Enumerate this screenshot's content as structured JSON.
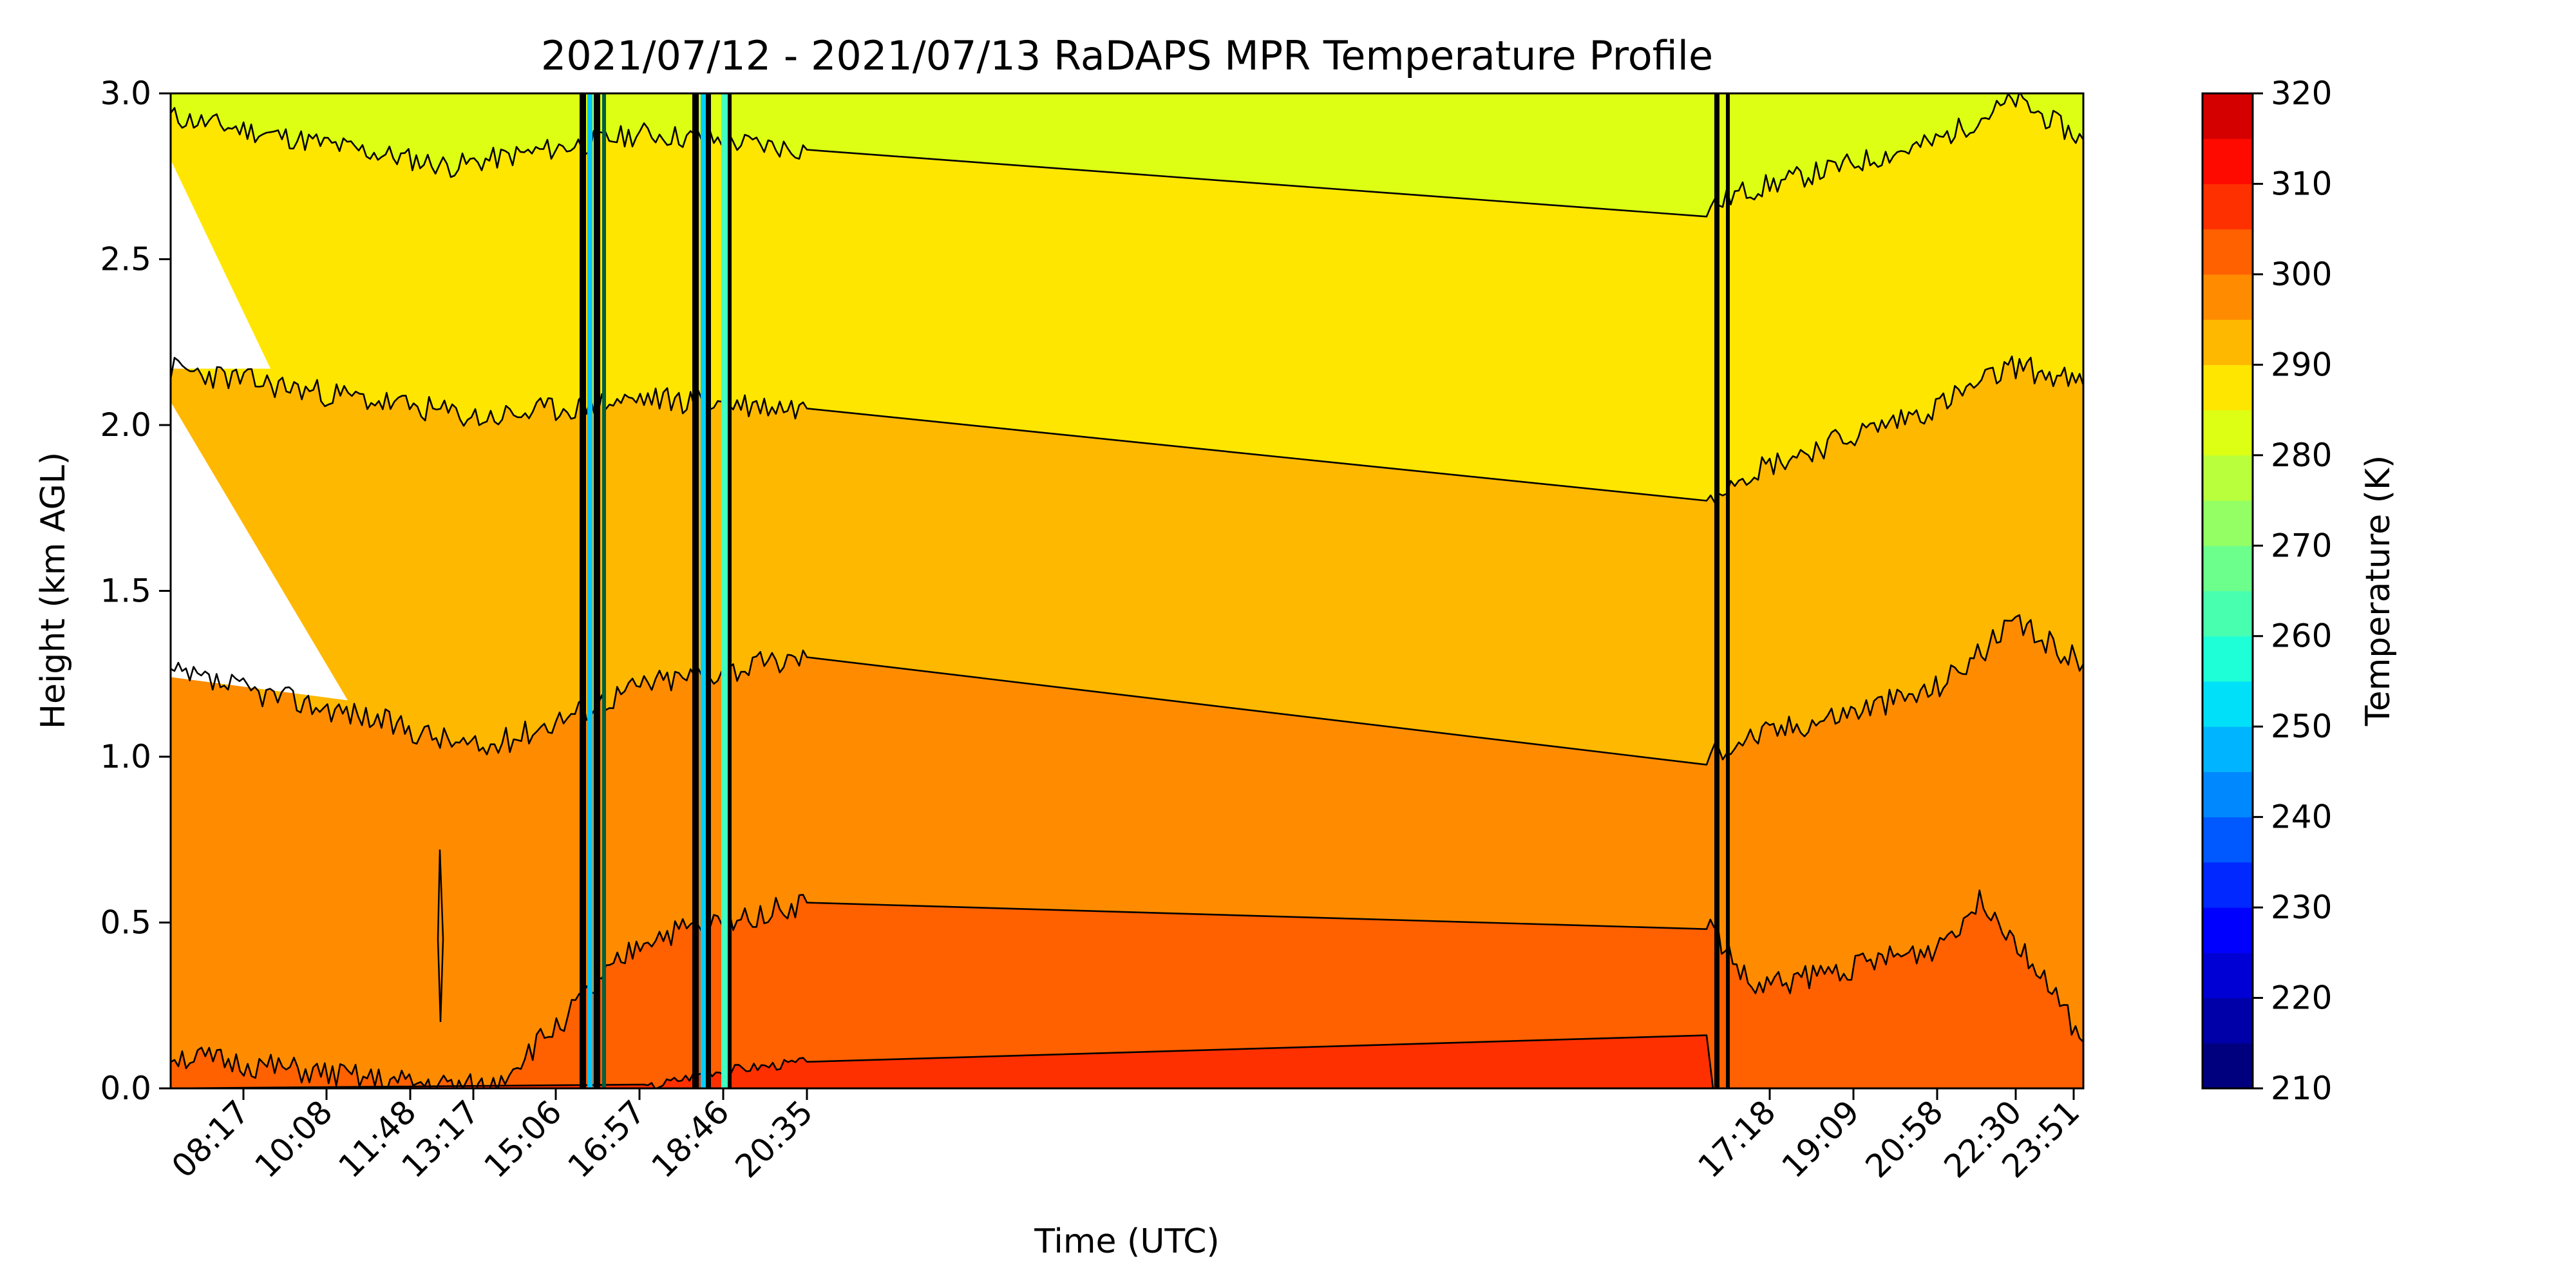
{
  "chart_data": {
    "type": "contour",
    "title": "2021/07/12 - 2021/07/13 RaDAPS MPR Temperature Profile",
    "xlabel": "Time (UTC)",
    "ylabel": "Height (km AGL)",
    "ylim": [
      0,
      3.0
    ],
    "y_ticks": [
      "0.0",
      "0.5",
      "1.0",
      "1.5",
      "2.0",
      "2.5",
      "3.0"
    ],
    "x_tick_labels": [
      "08:17",
      "10:08",
      "11:48",
      "13:17",
      "15:06",
      "16:57",
      "18:46",
      "20:35",
      "17:18",
      "19:09",
      "20:58",
      "22:30",
      "23:51"
    ],
    "colorbar": {
      "label": "Temperature (K)",
      "range": [
        210,
        320
      ],
      "step": 5,
      "tick_labels": [
        "210",
        "220",
        "230",
        "240",
        "250",
        "260",
        "270",
        "280",
        "290",
        "300",
        "310",
        "320"
      ]
    },
    "contour_levels_K": [
      280,
      285,
      290,
      295,
      300,
      305
    ],
    "grid": false,
    "colors": {
      "level_280_285": "#ffe600",
      "level_285_290": "#ffb800",
      "level_290_295": "#ff8c00",
      "level_295_300": "#ff6000",
      "level_300_305": "#ff3000",
      "level_275_280": "#dcff14",
      "contour_line": "#000000"
    }
  }
}
